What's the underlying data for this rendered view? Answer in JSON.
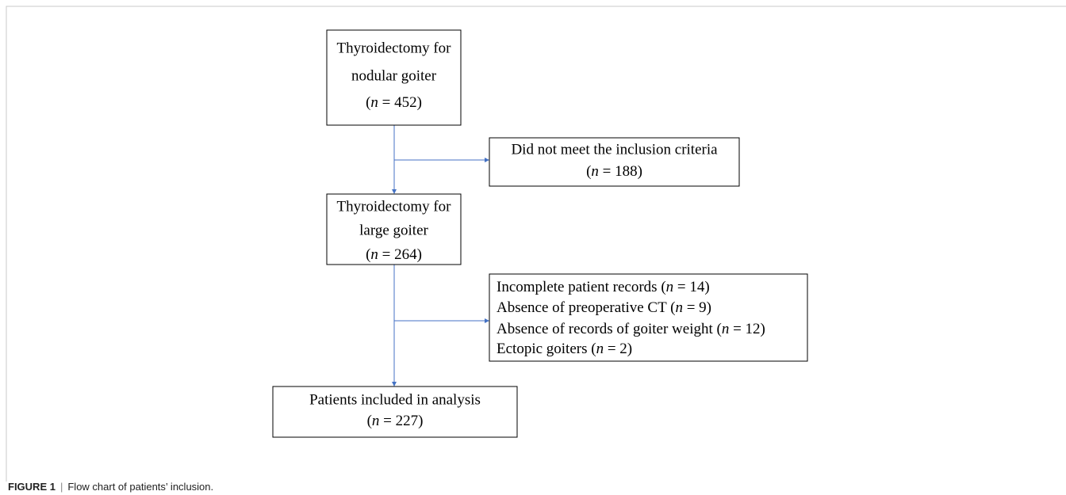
{
  "nodes": [
    {
      "lines": [
        "Thyroidectomy for",
        "nodular goiter",
        "(n = 452)"
      ]
    },
    {
      "lines": [
        "Did not meet the inclusion criteria",
        "(n = 188)"
      ]
    },
    {
      "lines": [
        "Thyroidectomy for",
        "large goiter",
        "(n = 264)"
      ]
    },
    {
      "lines": [
        "Incomplete patient records (n = 14)",
        "Absence of preoperative CT (n = 9)",
        "Absence of records of goiter weight (n = 12)",
        "Ectopic goiters (n = 2)"
      ]
    },
    {
      "lines": [
        "Patients included in analysis",
        "(n = 227)"
      ]
    }
  ],
  "caption": {
    "label": "FIGURE 1",
    "separator": "|",
    "text": "Flow chart of patients’ inclusion."
  }
}
